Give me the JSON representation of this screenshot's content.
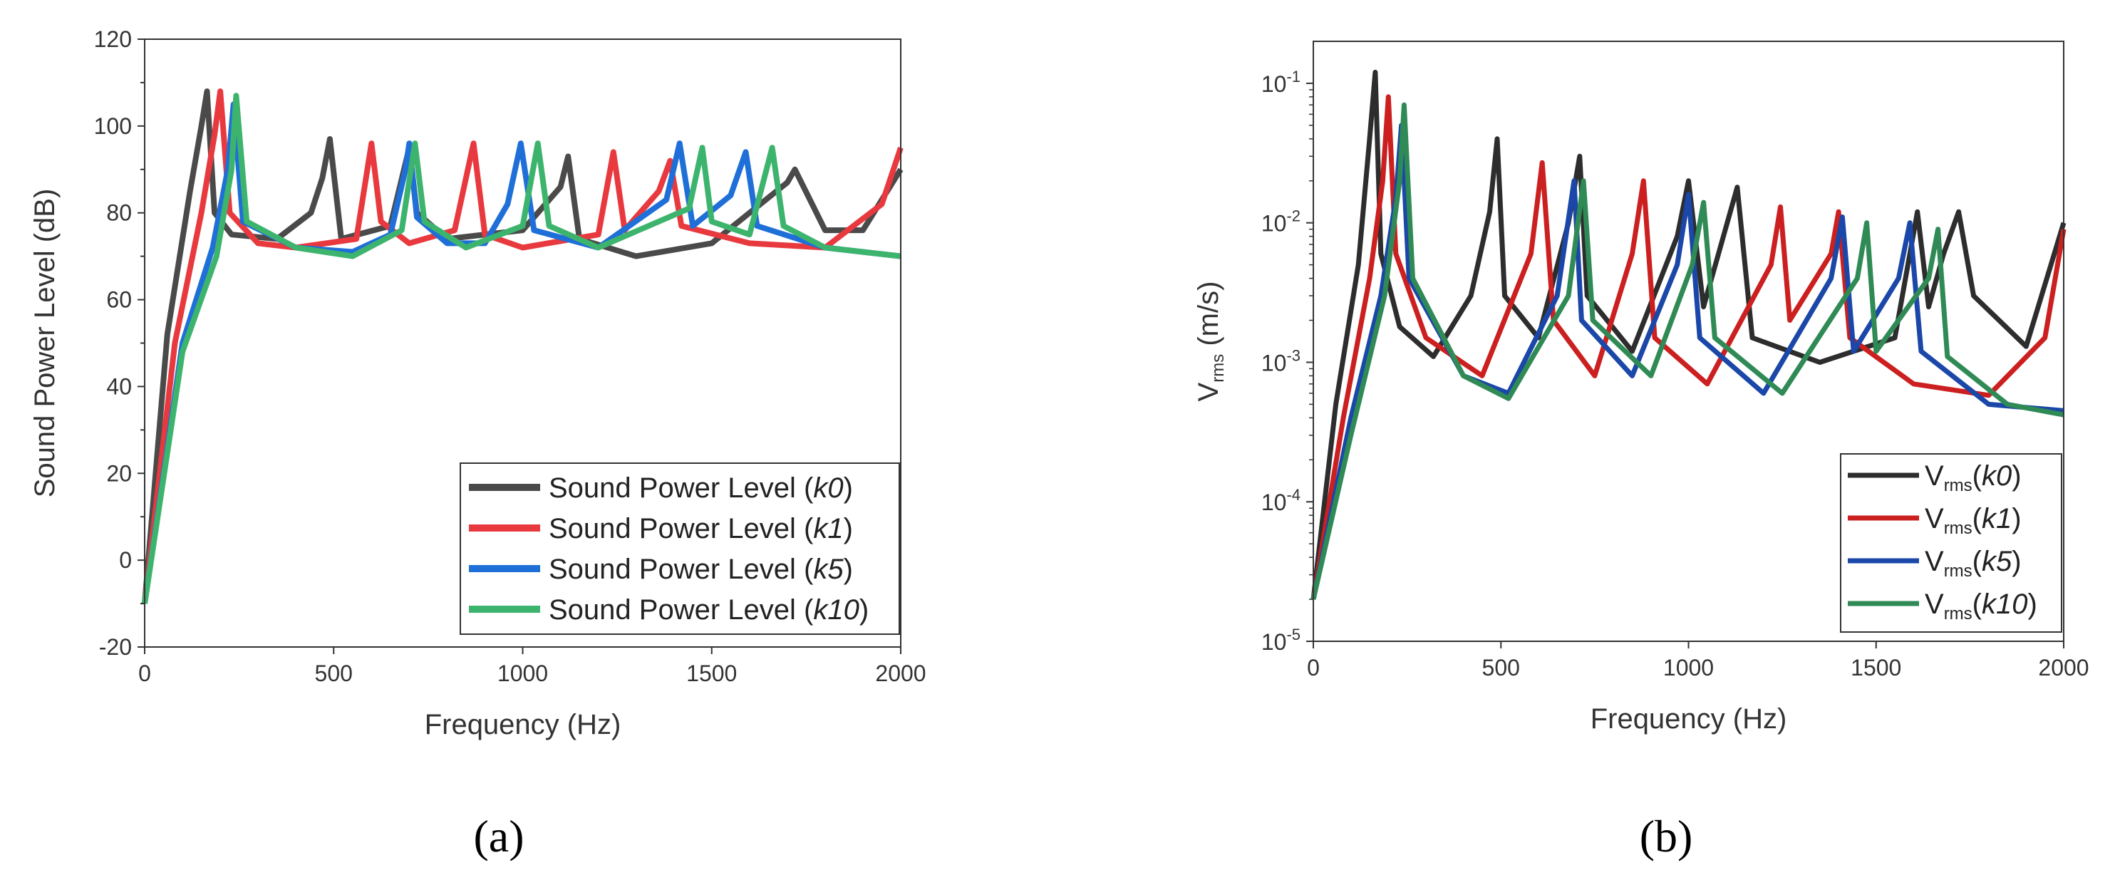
{
  "chart_data": [
    {
      "type": "line",
      "panel_caption": "(a)",
      "title": "",
      "xlabel": "Frequency (Hz)",
      "ylabel": "Sound Power Level (dB)",
      "xlim": [
        0,
        2000
      ],
      "ylim": [
        -20,
        120
      ],
      "yscale": "linear",
      "x_ticks": [
        "0",
        "500",
        "1000",
        "1500",
        "2000"
      ],
      "y_ticks": [
        "-20",
        "0",
        "20",
        "40",
        "60",
        "80",
        "100",
        "120"
      ],
      "legend_position": "bottom-right",
      "series": [
        {
          "name": "Sound Power Level (k0)",
          "legend_prefix": "Sound Power Level (",
          "legend_italic": "k0",
          "legend_suffix": ")",
          "color": "#4a4a4a",
          "x": [
            0,
            60,
            120,
            150,
            165,
            185,
            230,
            350,
            440,
            470,
            490,
            520,
            650,
            700,
            720,
            800,
            1000,
            1100,
            1120,
            1150,
            1300,
            1500,
            1600,
            1700,
            1720,
            1800,
            1900,
            2000
          ],
          "values": [
            -10,
            52,
            85,
            100,
            108,
            80,
            75,
            74,
            80,
            88,
            97,
            74,
            77,
            95,
            80,
            74,
            76,
            86,
            93,
            74,
            70,
            73,
            80,
            87,
            90,
            76,
            76,
            90
          ]
        },
        {
          "name": "Sound Power Level (k1)",
          "legend_prefix": "Sound Power Level (",
          "legend_italic": "k1",
          "legend_suffix": ")",
          "color": "#e8393f",
          "x": [
            0,
            80,
            150,
            185,
            200,
            225,
            300,
            400,
            560,
            600,
            625,
            700,
            820,
            870,
            900,
            1000,
            1200,
            1240,
            1270,
            1360,
            1390,
            1420,
            1600,
            1800,
            1950,
            2000
          ],
          "values": [
            -10,
            50,
            80,
            98,
            108,
            80,
            73,
            72,
            74,
            96,
            78,
            73,
            76,
            96,
            75,
            72,
            75,
            94,
            76,
            85,
            92,
            77,
            73,
            72,
            82,
            95
          ]
        },
        {
          "name": "Sound Power Level (k5)",
          "legend_prefix": "Sound Power Level (",
          "legend_italic": "k5",
          "legend_suffix": ")",
          "color": "#1f6fd8",
          "x": [
            0,
            100,
            180,
            220,
            235,
            260,
            400,
            550,
            650,
            690,
            700,
            720,
            800,
            900,
            960,
            995,
            1030,
            1200,
            1380,
            1415,
            1450,
            1550,
            1590,
            1620,
            1800,
            2000
          ],
          "values": [
            -10,
            50,
            72,
            90,
            105,
            78,
            72,
            71,
            75,
            90,
            96,
            79,
            73,
            73,
            82,
            96,
            76,
            72,
            83,
            96,
            77,
            84,
            94,
            77,
            72,
            70
          ]
        },
        {
          "name": "Sound Power Level (k10)",
          "legend_prefix": "Sound Power Level (",
          "legend_italic": "k10",
          "legend_suffix": ")",
          "color": "#3db46d",
          "x": [
            0,
            100,
            190,
            230,
            242,
            270,
            400,
            550,
            680,
            715,
            740,
            850,
            1000,
            1040,
            1070,
            1200,
            1440,
            1475,
            1500,
            1600,
            1660,
            1690,
            1800,
            2000
          ],
          "values": [
            -10,
            48,
            70,
            90,
            107,
            78,
            72,
            70,
            76,
            96,
            78,
            72,
            77,
            96,
            77,
            72,
            81,
            95,
            78,
            75,
            95,
            77,
            72,
            70
          ]
        }
      ]
    },
    {
      "type": "line",
      "panel_caption": "(b)",
      "title": "",
      "xlabel": "Frequency (Hz)",
      "ylabel_main": "V",
      "ylabel_sub": "rms",
      "ylabel_rest": " (m/s)",
      "xlim": [
        0,
        2000
      ],
      "ylim": [
        1e-05,
        0.2
      ],
      "yscale": "log",
      "x_ticks": [
        "0",
        "500",
        "1000",
        "1500",
        "2000"
      ],
      "y_ticks": [
        {
          "value": 0.1,
          "mantissa": "10",
          "exp": "-1"
        },
        {
          "value": 0.01,
          "mantissa": "10",
          "exp": "-2"
        },
        {
          "value": 0.001,
          "mantissa": "10",
          "exp": "-3"
        },
        {
          "value": 0.0001,
          "mantissa": "10",
          "exp": "-4"
        },
        {
          "value": 1e-05,
          "mantissa": "10",
          "exp": "-5"
        }
      ],
      "legend_position": "bottom-right",
      "series": [
        {
          "name": "Vrms(k0)",
          "legend_main": "V",
          "legend_sub": "rms",
          "legend_open": "(",
          "legend_italic": "k0",
          "legend_close": ")",
          "color": "#2d2d2d",
          "x": [
            0,
            60,
            120,
            150,
            165,
            180,
            230,
            320,
            420,
            470,
            490,
            510,
            600,
            680,
            710,
            730,
            850,
            970,
            1000,
            1040,
            1080,
            1130,
            1170,
            1350,
            1550,
            1610,
            1640,
            1680,
            1720,
            1760,
            1900,
            2000
          ],
          "values": [
            2e-05,
            0.0005,
            0.005,
            0.04,
            0.12,
            0.006,
            0.0018,
            0.0011,
            0.003,
            0.012,
            0.04,
            0.003,
            0.0015,
            0.01,
            0.03,
            0.003,
            0.0012,
            0.008,
            0.02,
            0.0025,
            0.006,
            0.018,
            0.0015,
            0.001,
            0.0015,
            0.012,
            0.0025,
            0.006,
            0.012,
            0.003,
            0.0013,
            0.01
          ]
        },
        {
          "name": "Vrms(k1)",
          "legend_main": "V",
          "legend_sub": "rms",
          "legend_open": "(",
          "legend_italic": "k1",
          "legend_close": ")",
          "color": "#cc1f1f",
          "x": [
            0,
            80,
            150,
            185,
            200,
            220,
            300,
            450,
            580,
            610,
            640,
            750,
            850,
            880,
            910,
            1050,
            1220,
            1245,
            1270,
            1380,
            1400,
            1430,
            1600,
            1800,
            1950,
            2000
          ],
          "values": [
            2e-05,
            0.0004,
            0.004,
            0.02,
            0.08,
            0.006,
            0.0015,
            0.0008,
            0.006,
            0.027,
            0.002,
            0.0008,
            0.006,
            0.02,
            0.0015,
            0.0007,
            0.005,
            0.013,
            0.002,
            0.006,
            0.012,
            0.0015,
            0.0007,
            0.00058,
            0.0015,
            0.009
          ]
        },
        {
          "name": "Vrms(k5)",
          "legend_main": "V",
          "legend_sub": "rms",
          "legend_open": "(",
          "legend_italic": "k5",
          "legend_close": ")",
          "color": "#1a47a8",
          "x": [
            0,
            100,
            180,
            220,
            235,
            255,
            400,
            520,
            650,
            695,
            715,
            850,
            970,
            1000,
            1030,
            1200,
            1380,
            1410,
            1440,
            1560,
            1590,
            1620,
            1800,
            2000
          ],
          "values": [
            2e-05,
            0.0004,
            0.003,
            0.015,
            0.05,
            0.004,
            0.0008,
            0.0006,
            0.003,
            0.02,
            0.002,
            0.0008,
            0.005,
            0.016,
            0.0015,
            0.0006,
            0.004,
            0.011,
            0.0012,
            0.004,
            0.01,
            0.0012,
            0.0005,
            0.00045
          ]
        },
        {
          "name": "Vrms(k10)",
          "legend_main": "V",
          "legend_sub": "rms",
          "legend_open": "(",
          "legend_italic": "k10",
          "legend_close": ")",
          "color": "#2f8a55",
          "x": [
            0,
            100,
            190,
            230,
            242,
            265,
            400,
            520,
            680,
            720,
            745,
            900,
            1010,
            1040,
            1070,
            1250,
            1450,
            1475,
            1500,
            1640,
            1665,
            1690,
            1850,
            2000
          ],
          "values": [
            2e-05,
            0.0003,
            0.003,
            0.02,
            0.07,
            0.004,
            0.0008,
            0.00055,
            0.003,
            0.02,
            0.002,
            0.0008,
            0.005,
            0.014,
            0.0015,
            0.0006,
            0.004,
            0.01,
            0.0012,
            0.004,
            0.009,
            0.0011,
            0.0005,
            0.00042
          ]
        }
      ]
    }
  ]
}
